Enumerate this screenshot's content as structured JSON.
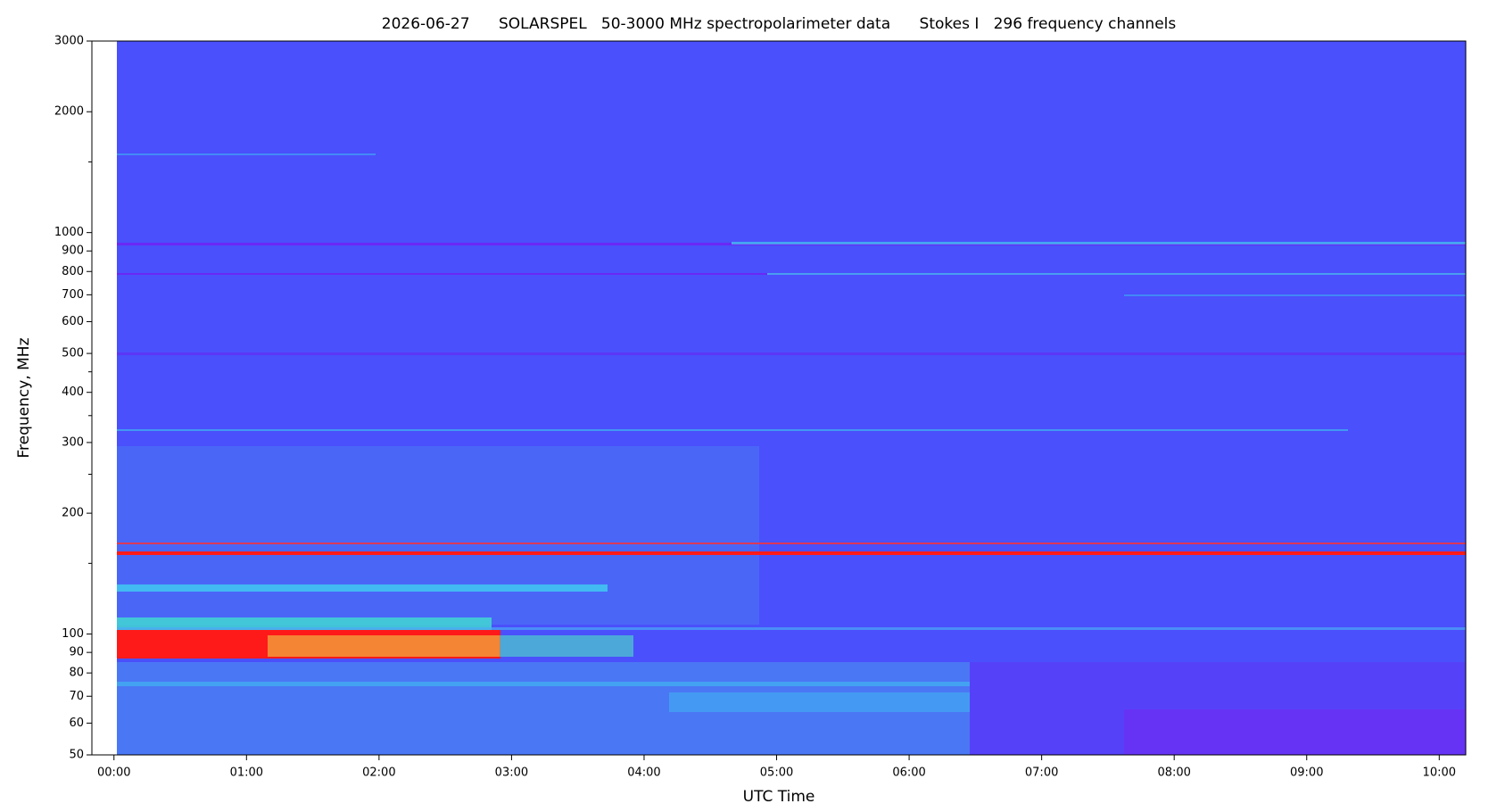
{
  "chart_data": {
    "type": "spectrogram",
    "title": "2026-06-27      SOLARSPEL   50-3000 MHz spectropolarimeter data      Stokes I   296 frequency channels",
    "x_label": "UTC Time",
    "y_label": "Frequency, MHz",
    "xlim": [
      -10,
      612
    ],
    "xticks": [
      {
        "value": 0,
        "label": "00:00"
      },
      {
        "value": 60,
        "label": "01:00"
      },
      {
        "value": 120,
        "label": "02:00"
      },
      {
        "value": 180,
        "label": "03:00"
      },
      {
        "value": 240,
        "label": "04:00"
      },
      {
        "value": 300,
        "label": "05:00"
      },
      {
        "value": 360,
        "label": "06:00"
      },
      {
        "value": 420,
        "label": "07:00"
      },
      {
        "value": 480,
        "label": "08:00"
      },
      {
        "value": 540,
        "label": "09:00"
      },
      {
        "value": 600,
        "label": "10:00"
      }
    ],
    "yscale": "log",
    "ylim": [
      50,
      3000
    ],
    "yticks": [
      50,
      60,
      70,
      80,
      90,
      100,
      200,
      300,
      400,
      500,
      600,
      700,
      800,
      900,
      1000,
      2000,
      3000
    ],
    "y_minor_ticks": [
      150,
      250,
      350,
      450,
      1500
    ]
  }
}
